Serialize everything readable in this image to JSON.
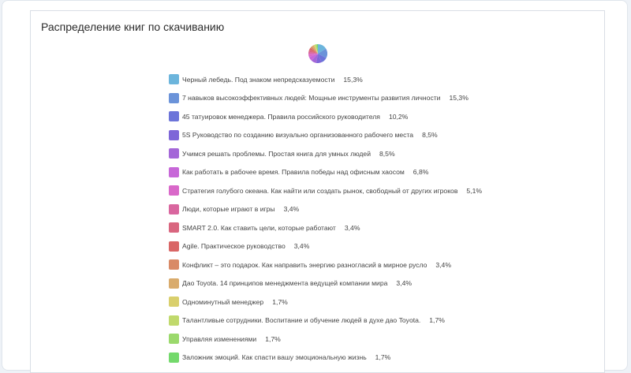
{
  "card": {
    "title": "Распределение книг по скачиванию"
  },
  "chart_data": {
    "type": "pie",
    "title": "Распределение книг по скачиванию",
    "legend_position": "below-pie",
    "slices": [
      {
        "label": "Черный лебедь. Под знаком непредсказуемости",
        "value": 15.3,
        "value_label": "15,3%",
        "color": "#6cb5dc"
      },
      {
        "label": "7 навыков высокоэффективных людей: Мощные инструменты развития личности",
        "value": 15.3,
        "value_label": "15,3%",
        "color": "#6b93d9"
      },
      {
        "label": "45 татуировок менеджера. Правила российского руководителя",
        "value": 10.2,
        "value_label": "10,2%",
        "color": "#6c74d9"
      },
      {
        "label": "5S Руководство по созданию визуально организованного рабочего места",
        "value": 8.5,
        "value_label": "8,5%",
        "color": "#7e66d8"
      },
      {
        "label": "Учимся решать проблемы. Простая книга для умных людей",
        "value": 8.5,
        "value_label": "8,5%",
        "color": "#a467d8"
      },
      {
        "label": "Как работать в рабочее время. Правила победы над офисным хаосом",
        "value": 6.8,
        "value_label": "6,8%",
        "color": "#c767d8"
      },
      {
        "label": "Стратегия голубого океана. Как найти или создать рынок, свободный от других игроков",
        "value": 5.1,
        "value_label": "5,1%",
        "color": "#d968c9"
      },
      {
        "label": "Люди, которые играют в игры",
        "value": 3.4,
        "value_label": "3,4%",
        "color": "#d9669f"
      },
      {
        "label": "SMART 2.0. Как ставить цели, которые работают",
        "value": 3.4,
        "value_label": "3,4%",
        "color": "#d9667f"
      },
      {
        "label": "Agile. Практическое руководство",
        "value": 3.4,
        "value_label": "3,4%",
        "color": "#d96666"
      },
      {
        "label": "Конфликт – это подарок. Как направить энергию разногласий в мирное русло",
        "value": 3.4,
        "value_label": "3,4%",
        "color": "#d98a66"
      },
      {
        "label": "Дао Toyota. 14 принципов менеджмента ведущей компании мира",
        "value": 3.4,
        "value_label": "3,4%",
        "color": "#d9ab6c"
      },
      {
        "label": "Одноминутный менеджер",
        "value": 1.7,
        "value_label": "1,7%",
        "color": "#d9cf6c"
      },
      {
        "label": "Талантливые сотрудники. Воспитание и обучение людей в духе дао Toyota.",
        "value": 1.7,
        "value_label": "1,7%",
        "color": "#c0d96c"
      },
      {
        "label": "Управляя изменениями",
        "value": 1.7,
        "value_label": "1,7%",
        "color": "#9bd96c"
      },
      {
        "label": "Заложник эмоций. Как спасти вашу эмоциональную жизнь",
        "value": 1.7,
        "value_label": "1,7%",
        "color": "#74d96c"
      }
    ]
  }
}
